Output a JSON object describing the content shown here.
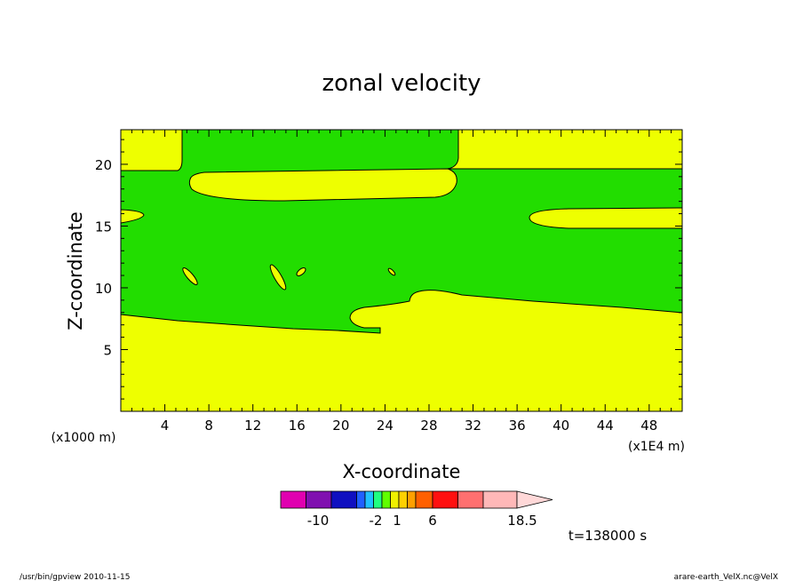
{
  "chart_data": {
    "type": "contour",
    "title": "zonal velocity",
    "xlabel": "X-coordinate",
    "ylabel": "Z-coordinate",
    "x_unit_left": "(x1000 m)",
    "x_unit_right": "(x1E4 m)",
    "x_ticks": [
      "4",
      "8",
      "12",
      "16",
      "20",
      "24",
      "28",
      "32",
      "36",
      "40",
      "44",
      "48"
    ],
    "x_tick_values": [
      4,
      8,
      12,
      16,
      20,
      24,
      28,
      32,
      36,
      40,
      44,
      48
    ],
    "xlim": [
      0,
      51
    ],
    "y_ticks": [
      "5",
      "10",
      "15",
      "20"
    ],
    "y_tick_values": [
      5,
      10,
      15,
      20
    ],
    "ylim": [
      0,
      22.8
    ],
    "fill_colors": {
      "background_band": "#eeff00",
      "mid_band": "#22dd00"
    },
    "colorbar": {
      "colors": [
        "#e000b0",
        "#8010b0",
        "#1010c0",
        "#2060ff",
        "#20c0ff",
        "#20ff80",
        "#60ff00",
        "#f0f000",
        "#ffd000",
        "#ffa000",
        "#ff6000",
        "#ff1010",
        "#ff7070",
        "#ffb8b8"
      ],
      "widths": [
        3,
        3,
        3,
        1,
        1,
        1,
        1,
        1,
        1,
        1,
        2,
        3,
        3,
        4
      ],
      "labels": [
        "-10",
        "-2",
        "1",
        "6",
        "18.5"
      ],
      "label_positions_value": [
        -10,
        -2,
        1,
        6,
        18.5
      ],
      "extend_arrow_color": "#ffd8d8"
    },
    "time_label": "t=138000 s"
  },
  "footer": {
    "left": "/usr/bin/gpview   2010-11-15",
    "right": "arare-earth_VelX.nc@VelX"
  }
}
